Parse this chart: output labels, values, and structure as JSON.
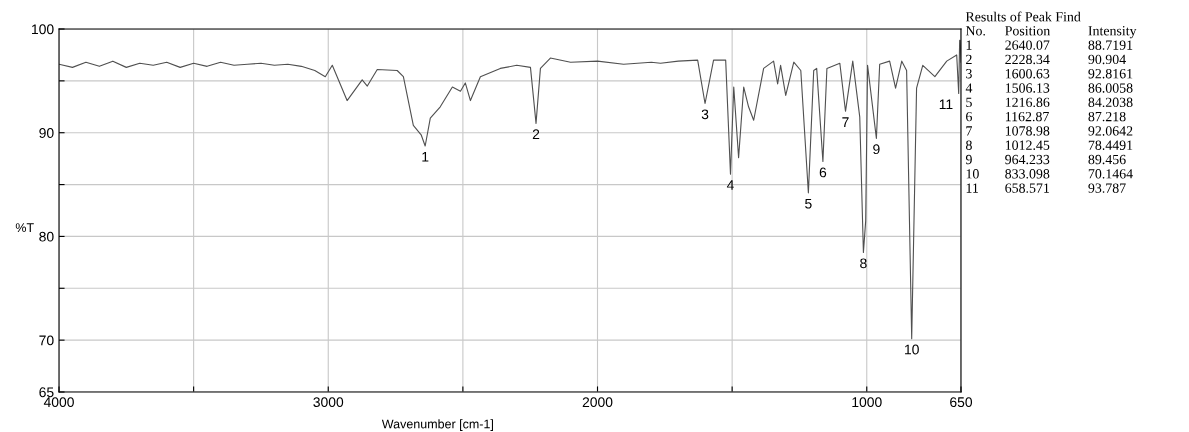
{
  "chart_data": {
    "type": "line",
    "xlabel": "Wavenumber [cm-1]",
    "ylabel": "%T",
    "xlim": [
      4000,
      650
    ],
    "xticks": [
      4000,
      {
        "value": 3500,
        "label": null
      },
      3000,
      {
        "value": 2500,
        "label": null
      },
      2000,
      {
        "value": 1500,
        "label": null
      },
      1000,
      650
    ],
    "ylim": [
      65,
      100
    ],
    "yticks": [
      65,
      70,
      {
        "value": 75,
        "label": null
      },
      80,
      {
        "value": 85,
        "label": null
      },
      90,
      {
        "value": 95,
        "label": null
      },
      100
    ],
    "grid": true,
    "marker": "none",
    "line_style": "solid",
    "series": [
      {
        "color": "#505050",
        "x": [
          4000,
          3950,
          3900,
          3850,
          3800,
          3750,
          3700,
          3650,
          3600,
          3550,
          3500,
          3450,
          3400,
          3350,
          3300,
          3250,
          3200,
          3150,
          3100,
          3050,
          3011,
          2985,
          2930,
          2874,
          2855,
          2818,
          2744,
          2721,
          2684,
          2655,
          2640.07,
          2621,
          2584,
          2539,
          2509,
          2491,
          2472,
          2435,
          2361,
          2300,
          2249,
          2228.34,
          2212,
          2175,
          2100,
          2000,
          1903,
          1800,
          1766,
          1700,
          1628,
          1600.63,
          1569,
          1524,
          1506.13,
          1494,
          1476,
          1457,
          1439,
          1420,
          1383,
          1346,
          1331,
          1320,
          1301,
          1271,
          1245,
          1216.86,
          1197,
          1186,
          1162.87,
          1148,
          1100,
          1078.98,
          1052,
          1026,
          1012.45,
          1004,
          997,
          964.233,
          952,
          915,
          893,
          870,
          852,
          833.098,
          815,
          792,
          747,
          703,
          666,
          658.571,
          655,
          653,
          650
        ],
        "values": [
          96.6,
          96.3,
          96.8,
          96.4,
          96.9,
          96.3,
          96.7,
          96.5,
          96.8,
          96.3,
          96.7,
          96.4,
          96.8,
          96.5,
          96.6,
          96.7,
          96.5,
          96.6,
          96.4,
          96.0,
          95.4,
          96.5,
          93.1,
          95.1,
          94.5,
          96.1,
          96.0,
          95.4,
          90.7,
          89.8,
          88.7191,
          91.4,
          92.5,
          94.4,
          94.0,
          94.8,
          93.1,
          95.4,
          96.2,
          96.5,
          96.3,
          90.904,
          96.2,
          97.2,
          96.8,
          96.9,
          96.6,
          96.8,
          96.7,
          96.9,
          97.0,
          92.8161,
          97.0,
          97.0,
          86.0058,
          94.4,
          87.6,
          94.4,
          92.5,
          91.2,
          96.2,
          96.9,
          94.7,
          96.5,
          93.6,
          96.8,
          96.0,
          84.2038,
          96.0,
          96.2,
          87.218,
          96.2,
          96.7,
          92.0642,
          96.9,
          91.5,
          78.4491,
          81.5,
          96.5,
          89.456,
          96.6,
          96.9,
          94.3,
          96.9,
          96.0,
          70.1464,
          94.3,
          96.5,
          95.4,
          96.9,
          97.5,
          93.787,
          98.9,
          98.9,
          96.8
        ]
      }
    ],
    "annotations": [
      {
        "text": "1",
        "x": 2640.07,
        "y": 88.7191
      },
      {
        "text": "2",
        "x": 2228.34,
        "y": 90.904
      },
      {
        "text": "3",
        "x": 1600.63,
        "y": 92.8161
      },
      {
        "text": "4",
        "x": 1506.13,
        "y": 86.0058
      },
      {
        "text": "5",
        "x": 1216.86,
        "y": 84.2038
      },
      {
        "text": "6",
        "x": 1162.87,
        "y": 87.218
      },
      {
        "text": "7",
        "x": 1078.98,
        "y": 92.0642
      },
      {
        "text": "8",
        "x": 1012.45,
        "y": 78.4491
      },
      {
        "text": "9",
        "x": 964.233,
        "y": 89.456
      },
      {
        "text": "10",
        "x": 833.098,
        "y": 70.1464
      },
      {
        "text": "11",
        "x": 658.571,
        "y": 93.787
      },
      "Results of Peak Find",
      "No.",
      "Position",
      "Intensity",
      "1",
      "2640.07",
      "88.7191",
      "2",
      "2228.34",
      "90.904",
      "3",
      "1600.63",
      "92.8161",
      "4",
      "1506.13",
      "86.0058",
      "5",
      "1216.86",
      "84.2038",
      "6",
      "1162.87",
      "87.218",
      "7",
      "1078.98",
      "92.0642",
      "8",
      "1012.45",
      "78.4491",
      "9",
      "964.233",
      "89.456",
      "10",
      "833.098",
      "70.1464",
      "11",
      "658.571",
      "93.787"
    ]
  }
}
